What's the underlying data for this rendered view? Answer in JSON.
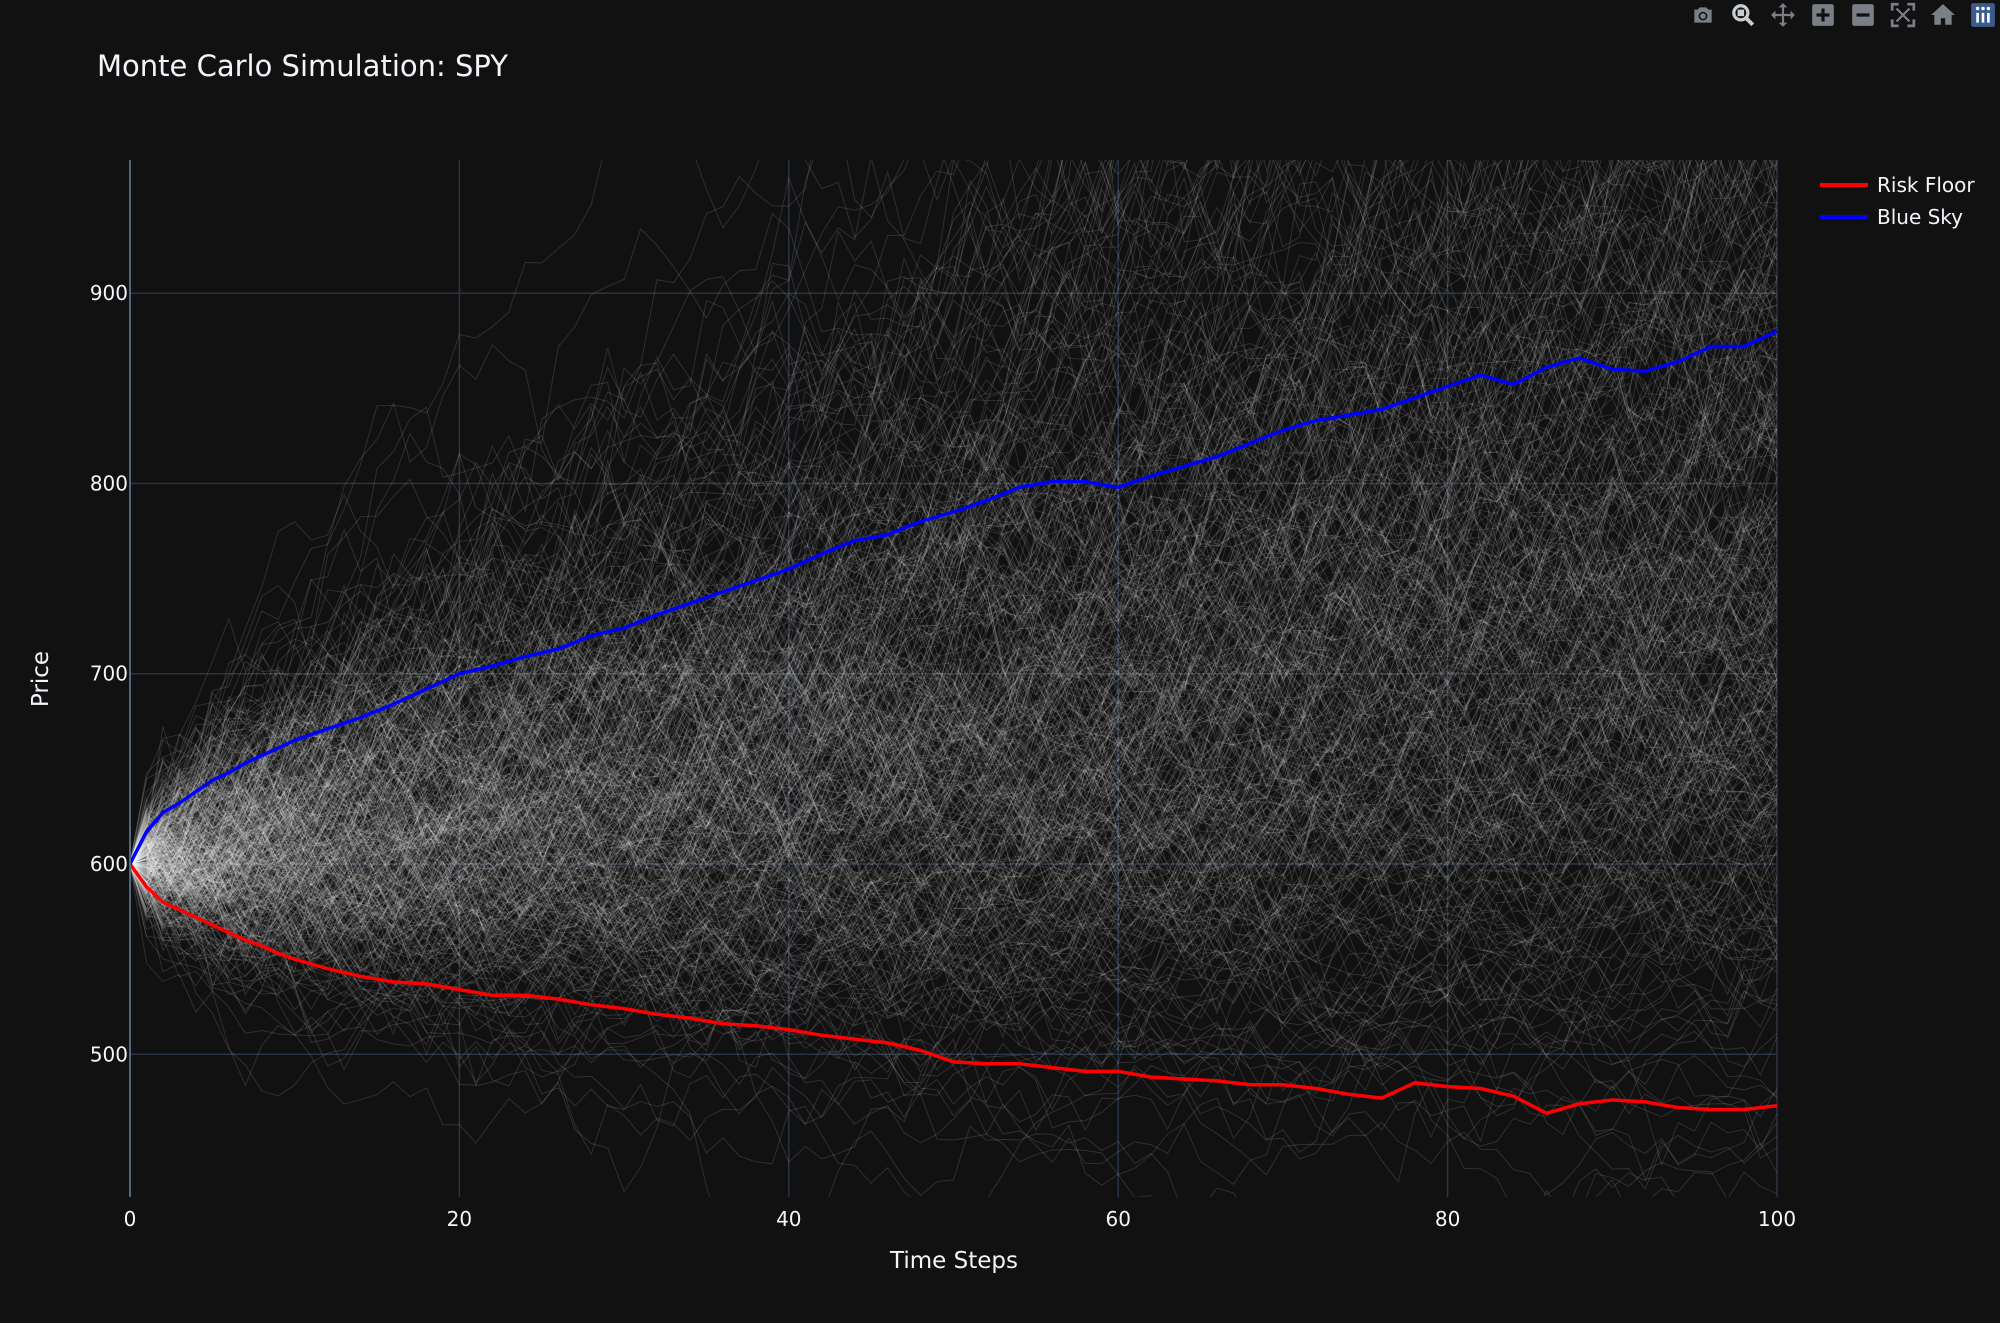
{
  "chart_data": {
    "type": "line",
    "title": "Monte Carlo Simulation: SPY",
    "xlabel": "Time Steps",
    "ylabel": "Price",
    "xlim": [
      0,
      100
    ],
    "ylim": [
      425,
      970
    ],
    "x_ticks": [
      0,
      20,
      40,
      60,
      80,
      100
    ],
    "y_ticks": [
      500,
      600,
      700,
      800,
      900
    ],
    "grid": true,
    "legend_position": "top-right",
    "start_price": 600,
    "simulation_paths": {
      "color": "#ffffff",
      "opacity": 0.13
    },
    "series": [
      {
        "name": "Risk Floor",
        "color": "#ff0000",
        "x": [
          0,
          1,
          2,
          3,
          4,
          5,
          6,
          7,
          8,
          9,
          10,
          12,
          14,
          16,
          18,
          20,
          22,
          24,
          26,
          28,
          30,
          32,
          34,
          36,
          38,
          40,
          42,
          44,
          46,
          48,
          50,
          52,
          54,
          56,
          58,
          60,
          62,
          64,
          66,
          68,
          70,
          72,
          74,
          76,
          78,
          80,
          82,
          84,
          86,
          88,
          90,
          92,
          94,
          96,
          98,
          100
        ],
        "values": [
          600,
          588,
          580,
          576,
          572,
          568,
          564,
          560,
          557,
          553,
          550,
          545,
          541,
          538,
          537,
          534,
          531,
          531,
          529,
          526,
          524,
          521,
          519,
          516,
          515,
          513,
          510,
          508,
          506,
          502,
          496,
          495,
          495,
          493,
          491,
          491,
          488,
          487,
          486,
          484,
          484,
          482,
          479,
          477,
          485,
          483,
          482,
          478,
          469,
          474,
          476,
          475,
          472,
          471,
          471,
          473
        ]
      },
      {
        "name": "Blue Sky",
        "color": "#0000ff",
        "x": [
          0,
          1,
          2,
          3,
          4,
          5,
          6,
          7,
          8,
          9,
          10,
          12,
          14,
          16,
          18,
          20,
          22,
          24,
          26,
          28,
          30,
          32,
          34,
          36,
          38,
          40,
          42,
          44,
          46,
          48,
          50,
          52,
          54,
          56,
          58,
          60,
          62,
          64,
          66,
          68,
          70,
          72,
          74,
          76,
          78,
          80,
          82,
          84,
          86,
          88,
          90,
          92,
          94,
          96,
          98,
          100
        ],
        "values": [
          600,
          617,
          627,
          632,
          638,
          644,
          648,
          653,
          657,
          661,
          665,
          671,
          677,
          684,
          692,
          700,
          704,
          709,
          713,
          720,
          724,
          731,
          737,
          743,
          749,
          755,
          763,
          770,
          773,
          780,
          785,
          791,
          798,
          801,
          801,
          798,
          804,
          809,
          814,
          821,
          828,
          833,
          836,
          839,
          845,
          851,
          857,
          852,
          861,
          866,
          860,
          859,
          864,
          872,
          872,
          880
        ]
      }
    ]
  },
  "modebar": {
    "icons": [
      "camera-icon",
      "zoom-icon",
      "pan-icon",
      "zoom-in-icon",
      "zoom-out-icon",
      "autoscale-icon",
      "home-icon",
      "plotly-logo-icon"
    ]
  }
}
